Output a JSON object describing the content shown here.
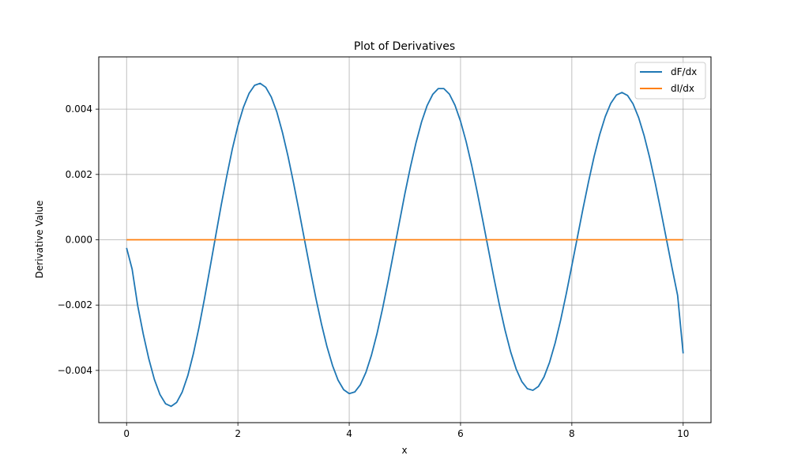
{
  "chart_data": {
    "type": "line",
    "title": "Plot of Derivatives",
    "xlabel": "x",
    "ylabel": "Derivative Value",
    "xlim": [
      -0.5,
      10.5
    ],
    "ylim": [
      -0.0056,
      0.0056
    ],
    "xticks": [
      0,
      2,
      4,
      6,
      8,
      10
    ],
    "xtick_labels": [
      "0",
      "2",
      "4",
      "6",
      "8",
      "10"
    ],
    "yticks": [
      -0.004,
      -0.002,
      0.0,
      0.002,
      0.004
    ],
    "ytick_labels": [
      "−0.004",
      "−0.002",
      "0.000",
      "0.002",
      "0.004"
    ],
    "grid": true,
    "legend_position": "top-right",
    "series": [
      {
        "name": "dF/dx",
        "color": "#1f77b4",
        "x": [
          0,
          0.1,
          0.2,
          0.3,
          0.4,
          0.5,
          0.6,
          0.7,
          0.8,
          0.9,
          1.0,
          1.1,
          1.2,
          1.3,
          1.4,
          1.5,
          1.6,
          1.7,
          1.8,
          1.9,
          2.0,
          2.1,
          2.2,
          2.3,
          2.4,
          2.5,
          2.6,
          2.7,
          2.8,
          2.9,
          3.0,
          3.1,
          3.2,
          3.3,
          3.4,
          3.5,
          3.6,
          3.7,
          3.8,
          3.9,
          4.0,
          4.1,
          4.2,
          4.3,
          4.4,
          4.5,
          4.6,
          4.7,
          4.8,
          4.9,
          5.0,
          5.1,
          5.2,
          5.3,
          5.4,
          5.5,
          5.6,
          5.7,
          5.8,
          5.9,
          6.0,
          6.1,
          6.2,
          6.3,
          6.4,
          6.5,
          6.6,
          6.7,
          6.8,
          6.9,
          7.0,
          7.1,
          7.2,
          7.3,
          7.4,
          7.5,
          7.6,
          7.7,
          7.8,
          7.9,
          8.0,
          8.1,
          8.2,
          8.3,
          8.4,
          8.5,
          8.6,
          8.7,
          8.8,
          8.9,
          9.0,
          9.1,
          9.2,
          9.3,
          9.4,
          9.5,
          9.6,
          9.7,
          9.8,
          9.9,
          10.0
        ],
        "y": [
          -0.00025,
          -0.0009,
          -0.00202,
          -0.00289,
          -0.00365,
          -0.00428,
          -0.00474,
          -0.00502,
          -0.0051,
          -0.00498,
          -0.00466,
          -0.00416,
          -0.00349,
          -0.00269,
          -0.0018,
          -0.00085,
          0.00011,
          0.00106,
          0.00195,
          0.00278,
          0.00349,
          0.00406,
          0.00448,
          0.00473,
          0.00479,
          0.00467,
          0.00437,
          0.00391,
          0.00329,
          0.00256,
          0.00174,
          0.00087,
          -3e-05,
          -0.00092,
          -0.00178,
          -0.00257,
          -0.00327,
          -0.00385,
          -0.0043,
          -0.00459,
          -0.00471,
          -0.00466,
          -0.00444,
          -0.00406,
          -0.00353,
          -0.00287,
          -0.0021,
          -0.00126,
          -0.00037,
          0.00052,
          0.00141,
          0.00223,
          0.00297,
          0.00361,
          0.00411,
          0.00445,
          0.00463,
          0.00463,
          0.00446,
          0.00412,
          0.00363,
          0.00301,
          0.00228,
          0.00146,
          0.00059,
          -0.00029,
          -0.00117,
          -0.00201,
          -0.00277,
          -0.00343,
          -0.00396,
          -0.00434,
          -0.00456,
          -0.00461,
          -0.00449,
          -0.0042,
          -0.00375,
          -0.00316,
          -0.00245,
          -0.00165,
          -0.00079,
          8e-05,
          0.00095,
          0.00178,
          0.00255,
          0.00322,
          0.00377,
          0.00418,
          0.00443,
          0.00451,
          0.00442,
          0.00416,
          0.00374,
          0.00318,
          0.0025,
          0.00172,
          0.00088,
          1e-05,
          -0.00086,
          -0.0017,
          -0.00348
        ],
        "note": ""
      },
      {
        "name": "dI/dx",
        "color": "#ff7f0e",
        "x": [
          0,
          10
        ],
        "y": [
          0,
          0
        ]
      }
    ]
  }
}
